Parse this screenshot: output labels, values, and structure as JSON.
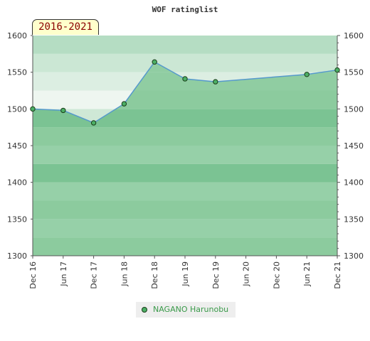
{
  "chart_data": {
    "type": "area",
    "title": "WOF ratinglist",
    "range_label": "2016-2021",
    "x_categories": [
      "Dec 16",
      "Jun 17",
      "Dec 17",
      "Jun 18",
      "Dec 18",
      "Jun 19",
      "Dec 19",
      "Jun 20",
      "Dec 20",
      "Jun 21",
      "Dec 21"
    ],
    "y_ticks": [
      1300,
      1350,
      1400,
      1450,
      1500,
      1550,
      1600
    ],
    "ylim": [
      1300,
      1600
    ],
    "series": [
      {
        "name": "NAGANO Harunobu",
        "points": [
          {
            "x": "Dec 16",
            "y": 1500
          },
          {
            "x": "Jun 17",
            "y": 1498
          },
          {
            "x": "Dec 17",
            "y": 1481
          },
          {
            "x": "Jun 18",
            "y": 1507
          },
          {
            "x": "Dec 18",
            "y": 1564
          },
          {
            "x": "Jun 19",
            "y": 1541
          },
          {
            "x": "Dec 19",
            "y": 1537
          },
          {
            "x": "Jun 21",
            "y": 1547
          },
          {
            "x": "Dec 21",
            "y": 1553
          }
        ]
      }
    ],
    "colors": {
      "line": "#5599cc",
      "marker": "#4caf65",
      "marker_edge": "#1a3d1a",
      "legend_text": "#3a9a4a",
      "range_text": "#8b0000",
      "range_bg": "#ffffcc"
    },
    "legend_position": "bottom-center"
  }
}
